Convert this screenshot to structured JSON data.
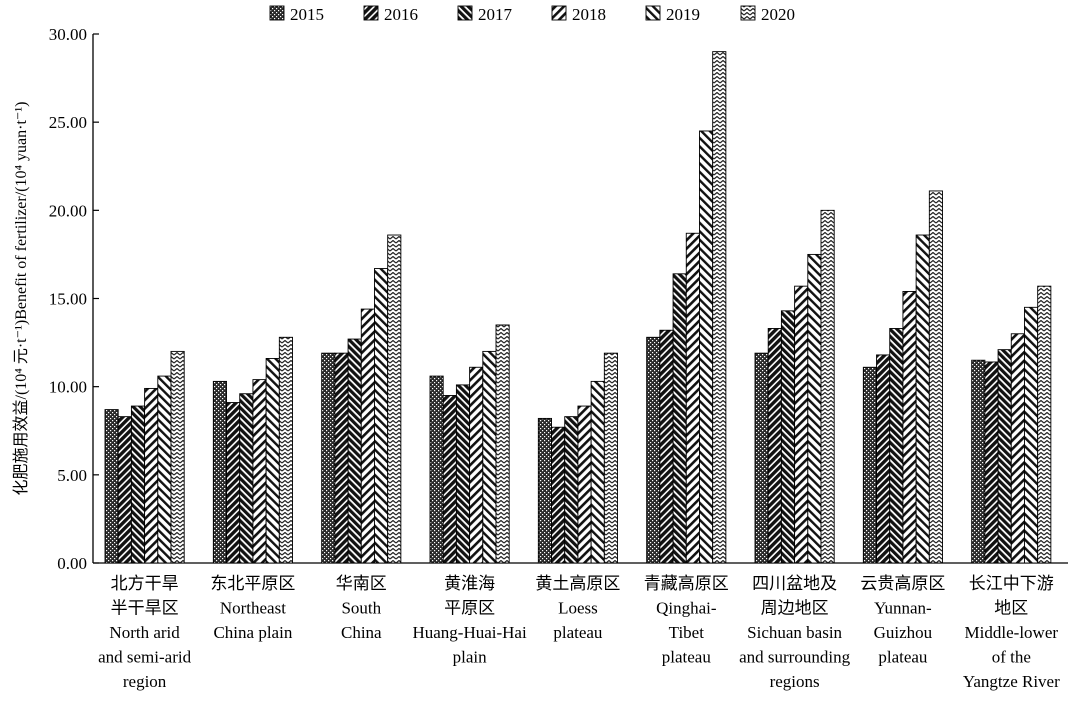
{
  "chart_data": {
    "type": "bar",
    "ylabel": "化肥施用效益/(10⁴ 元·t⁻¹)Benefit of fertilizer/(10⁴ yuan·t⁻¹)",
    "ylim": [
      0,
      30
    ],
    "yticks": [
      "0.00",
      "5.00",
      "10.00",
      "15.00",
      "20.00",
      "25.00",
      "30.00"
    ],
    "legend_position": "top-center",
    "categories": [
      [
        "北方干旱",
        "半干旱区",
        "North arid",
        "and semi-arid",
        "region"
      ],
      [
        "东北平原区",
        "Northeast",
        "China plain"
      ],
      [
        "华南区",
        "South",
        "China"
      ],
      [
        "黄淮海",
        "平原区",
        "Huang-Huai-Hai",
        "plain"
      ],
      [
        "黄土高原区",
        "Loess",
        "plateau"
      ],
      [
        "青藏高原区",
        "Qinghai-",
        "Tibet",
        "plateau"
      ],
      [
        "四川盆地及",
        "周边地区",
        "Sichuan basin",
        "and surrounding",
        "regions"
      ],
      [
        "云贵高原区",
        "Yunnan-",
        "Guizhou",
        "plateau"
      ],
      [
        "长江中下游",
        "地区",
        "Middle-lower",
        "of the",
        "Yangtze River"
      ]
    ],
    "series": [
      {
        "name": "2015",
        "values": [
          8.7,
          10.3,
          11.9,
          10.6,
          8.2,
          12.8,
          11.9,
          11.1,
          11.5
        ]
      },
      {
        "name": "2016",
        "values": [
          8.3,
          9.1,
          11.9,
          9.5,
          7.7,
          13.2,
          13.3,
          11.8,
          11.4
        ]
      },
      {
        "name": "2017",
        "values": [
          8.9,
          9.6,
          12.7,
          10.1,
          8.3,
          16.4,
          14.3,
          13.3,
          12.1
        ]
      },
      {
        "name": "2018",
        "values": [
          9.9,
          10.4,
          14.4,
          11.1,
          8.9,
          18.7,
          15.7,
          15.4,
          13.0
        ]
      },
      {
        "name": "2019",
        "values": [
          10.6,
          11.6,
          16.7,
          12.0,
          10.3,
          24.5,
          17.5,
          18.6,
          14.5
        ]
      },
      {
        "name": "2020",
        "values": [
          12.0,
          12.8,
          18.6,
          13.5,
          11.9,
          29.0,
          20.0,
          21.1,
          15.7
        ]
      }
    ]
  }
}
